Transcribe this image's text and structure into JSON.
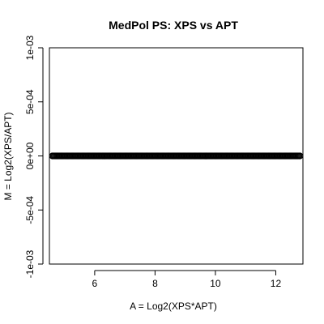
{
  "chart_data": {
    "type": "scatter",
    "title": "MedPol PS: XPS vs APT",
    "xlabel": "A = Log2(XPS*APT)",
    "ylabel": "M = Log2(XPS/APT)",
    "xlim": [
      4.5,
      12.9
    ],
    "ylim": [
      -0.001,
      0.001
    ],
    "x_ticks": [
      6,
      8,
      10,
      12
    ],
    "x_tick_labels": [
      "6",
      "8",
      "10",
      "12"
    ],
    "y_ticks": [
      -0.001,
      -0.0005,
      0,
      0.0005,
      0.001
    ],
    "y_tick_labels": [
      "-1e-03",
      "-5e-04",
      "0e+00",
      "5e-04",
      "1e-03"
    ],
    "grid": false,
    "legend": "none",
    "marker": "open-circle",
    "marker_color": "#000000",
    "points_description_x_range": [
      4.6,
      12.8
    ],
    "y_value_all_points": 0
  }
}
